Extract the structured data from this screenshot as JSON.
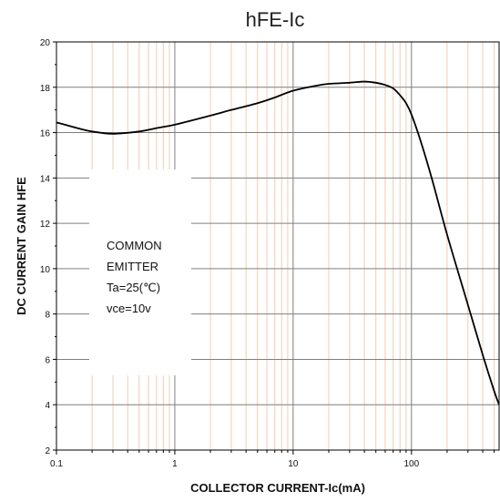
{
  "chart_data": {
    "type": "line",
    "title": "hFE-Ic",
    "xlabel": "COLLECTOR CURRENT-Ic(mA)",
    "ylabel": "DC CURRENT GAIN  HFE",
    "x_scale": "log",
    "xlim": [
      0.1,
      550
    ],
    "ylim": [
      2,
      20
    ],
    "x_ticks": [
      {
        "value": 0.1,
        "label": "0.1"
      },
      {
        "value": 1,
        "label": "1"
      },
      {
        "value": 10,
        "label": "10"
      },
      {
        "value": 100,
        "label": "100"
      }
    ],
    "y_ticks": [
      {
        "value": 2,
        "label": "2"
      },
      {
        "value": 4,
        "label": "4"
      },
      {
        "value": 6,
        "label": "6"
      },
      {
        "value": 8,
        "label": "8"
      },
      {
        "value": 10,
        "label": "10"
      },
      {
        "value": 12,
        "label": "12"
      },
      {
        "value": 14,
        "label": "14"
      },
      {
        "value": 16,
        "label": "16"
      },
      {
        "value": 18,
        "label": "18"
      },
      {
        "value": 20,
        "label": "20"
      }
    ],
    "grid": true,
    "legend": "none",
    "annotation_lines": [
      "COMMON",
      "EMITTER",
      "Ta=25(℃)",
      "vce=10v"
    ],
    "series": [
      {
        "color": "#000000",
        "x": [
          0.1,
          0.15,
          0.2,
          0.3,
          0.5,
          0.7,
          1,
          2,
          3,
          5,
          7,
          10,
          15,
          20,
          30,
          40,
          50,
          60,
          70,
          80,
          90,
          100,
          120,
          150,
          200,
          300,
          400,
          500,
          550
        ],
        "y": [
          16.45,
          16.2,
          16.05,
          15.95,
          16.05,
          16.2,
          16.35,
          16.75,
          17.0,
          17.3,
          17.55,
          17.85,
          18.05,
          18.15,
          18.2,
          18.25,
          18.2,
          18.1,
          17.95,
          17.65,
          17.3,
          16.8,
          15.6,
          13.9,
          11.5,
          8.4,
          6.2,
          4.6,
          4.0
        ]
      }
    ]
  },
  "colors": {
    "major_grid": "#7f7f7f",
    "minor_grid": "#f2ccb0",
    "curve": "#000000",
    "axis": "#000000"
  }
}
